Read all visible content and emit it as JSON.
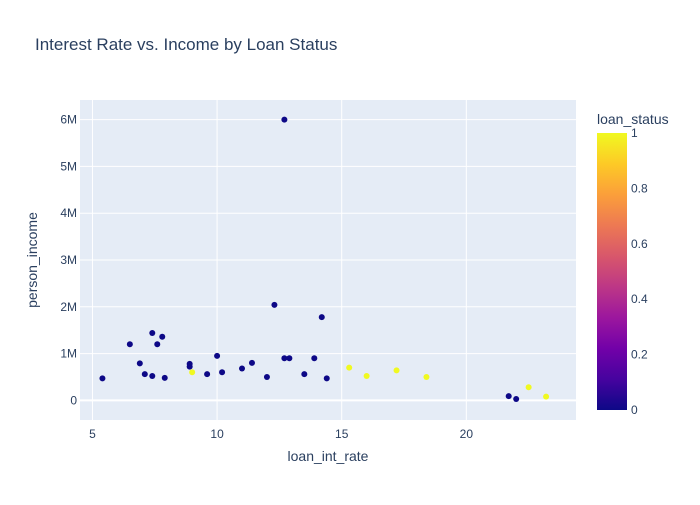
{
  "chart_data": {
    "type": "scatter",
    "title": "Interest Rate vs. Income by Loan Status",
    "xlabel": "loan_int_rate",
    "ylabel": "person_income",
    "xlim": [
      4.5,
      24.4
    ],
    "ylim": [
      -420000,
      6420000
    ],
    "x_ticks": [
      5,
      10,
      15,
      20
    ],
    "x_tick_labels": [
      "5",
      "10",
      "15",
      "20"
    ],
    "y_ticks": [
      0,
      1000000,
      2000000,
      3000000,
      4000000,
      5000000,
      6000000
    ],
    "y_tick_labels": [
      "0",
      "1M",
      "2M",
      "3M",
      "4M",
      "5M",
      "6M"
    ],
    "grid": true,
    "color_scale": {
      "title": "loan_status",
      "range": [
        0,
        1
      ],
      "ticks": [
        0,
        0.2,
        0.4,
        0.6,
        0.8,
        1
      ],
      "tick_labels": [
        "0",
        "0.2",
        "0.4",
        "0.6",
        "0.8",
        "1"
      ],
      "colors": [
        "#0d0887",
        "#46039f",
        "#7201a8",
        "#9c179e",
        "#bd3786",
        "#d8576b",
        "#ed7953",
        "#fb9f3a",
        "#fdca26",
        "#f0f921"
      ]
    },
    "points": [
      {
        "x": 12.7,
        "y": 6000000,
        "status": 0
      },
      {
        "x": 12.3,
        "y": 2040000,
        "status": 0
      },
      {
        "x": 14.2,
        "y": 1780000,
        "status": 0
      },
      {
        "x": 7.4,
        "y": 1440000,
        "status": 0
      },
      {
        "x": 7.8,
        "y": 1360000,
        "status": 0
      },
      {
        "x": 6.5,
        "y": 1200000,
        "status": 0
      },
      {
        "x": 7.6,
        "y": 1200000,
        "status": 0
      },
      {
        "x": 10.0,
        "y": 950000,
        "status": 0
      },
      {
        "x": 12.7,
        "y": 900000,
        "status": 0
      },
      {
        "x": 12.9,
        "y": 900000,
        "status": 0
      },
      {
        "x": 13.9,
        "y": 900000,
        "status": 0
      },
      {
        "x": 6.9,
        "y": 790000,
        "status": 0
      },
      {
        "x": 8.9,
        "y": 780000,
        "status": 0
      },
      {
        "x": 11.4,
        "y": 800000,
        "status": 0
      },
      {
        "x": 8.9,
        "y": 720000,
        "status": 0
      },
      {
        "x": 15.3,
        "y": 700000,
        "status": 1
      },
      {
        "x": 7.1,
        "y": 560000,
        "status": 0
      },
      {
        "x": 7.4,
        "y": 520000,
        "status": 0
      },
      {
        "x": 5.4,
        "y": 470000,
        "status": 0
      },
      {
        "x": 7.9,
        "y": 480000,
        "status": 0
      },
      {
        "x": 17.2,
        "y": 640000,
        "status": 1
      },
      {
        "x": 18.4,
        "y": 500000,
        "status": 1
      },
      {
        "x": 16.0,
        "y": 520000,
        "status": 1
      },
      {
        "x": 9.6,
        "y": 560000,
        "status": 0
      },
      {
        "x": 10.2,
        "y": 600000,
        "status": 0
      },
      {
        "x": 12.0,
        "y": 500000,
        "status": 0
      },
      {
        "x": 14.4,
        "y": 470000,
        "status": 0
      },
      {
        "x": 22.5,
        "y": 280000,
        "status": 1
      },
      {
        "x": 23.2,
        "y": 80000,
        "status": 1
      },
      {
        "x": 22.0,
        "y": 30000,
        "status": 0
      },
      {
        "x": 21.7,
        "y": 90000,
        "status": 0
      },
      {
        "x": 9.0,
        "y": 600000,
        "status": 1
      },
      {
        "x": 13.5,
        "y": 560000,
        "status": 0
      },
      {
        "x": 11.0,
        "y": 680000,
        "status": 0
      }
    ]
  }
}
